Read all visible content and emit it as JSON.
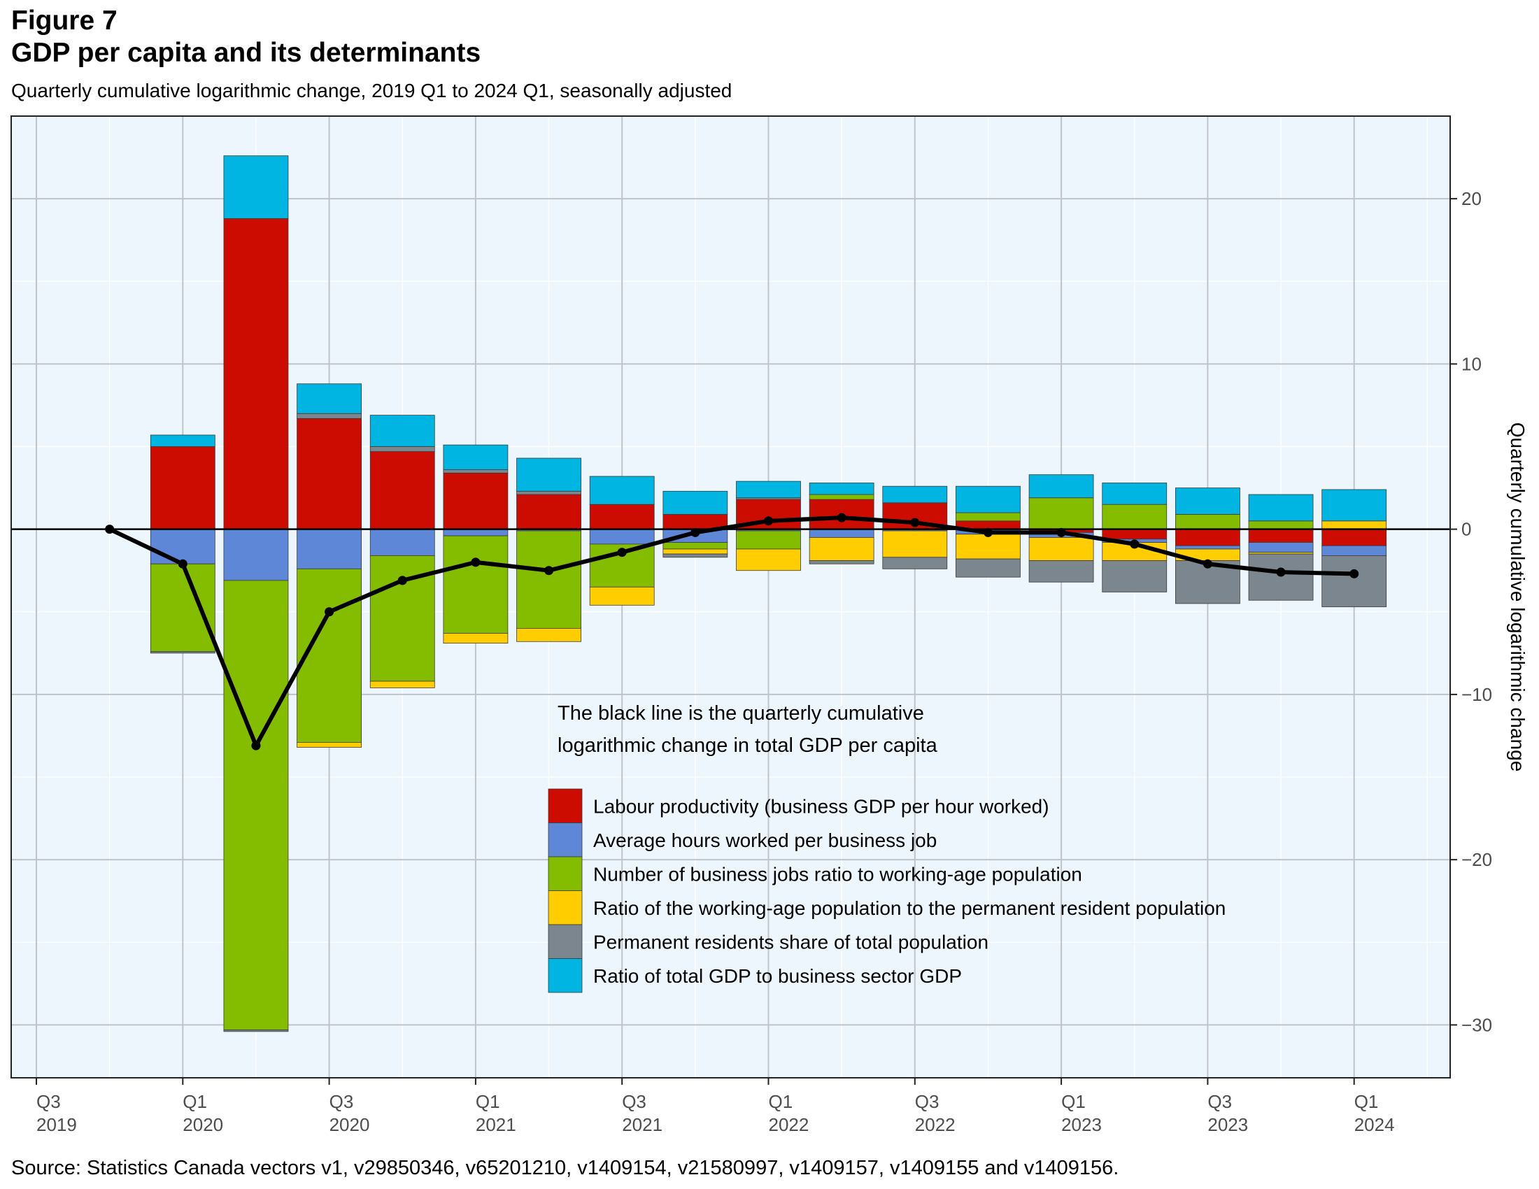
{
  "figure_label": "Figure 7",
  "title": "GDP per capita and its determinants",
  "subtitle": "Quarterly cumulative logarithmic change, 2019 Q1 to 2024 Q1, seasonally adjusted",
  "source": "Source: Statistics Canada vectors v1, v29850346, v65201210, v1409154, v21580997, v1409157, v1409155 and v1409156.",
  "annotation": [
    "The black line is the quarterly cumulative",
    "logarithmic change in total GDP per capita"
  ],
  "colors": {
    "panel_bg": "#eef6fd",
    "grid": "#bfc4c9",
    "labour_productivity": "#cc0c00",
    "hours_worked": "#5e87d8",
    "jobs_ratio": "#84bc00",
    "working_age_ratio": "#ffcd00",
    "permanent_residents": "#7b868e",
    "gdp_ratio": "#00b5e1",
    "line": "#000000"
  },
  "chart_data": {
    "type": "bar",
    "stacked": true,
    "x_tick_labels": [
      {
        "q": "Q3",
        "y": "2019"
      },
      {
        "q": "Q1",
        "y": "2020"
      },
      {
        "q": "Q3",
        "y": "2020"
      },
      {
        "q": "Q1",
        "y": "2021"
      },
      {
        "q": "Q3",
        "y": "2021"
      },
      {
        "q": "Q1",
        "y": "2022"
      },
      {
        "q": "Q3",
        "y": "2022"
      },
      {
        "q": "Q1",
        "y": "2023"
      },
      {
        "q": "Q3",
        "y": "2023"
      },
      {
        "q": "Q1",
        "y": "2024"
      }
    ],
    "categories": [
      "2019 Q4",
      "2020 Q1",
      "2020 Q2",
      "2020 Q3",
      "2020 Q4",
      "2021 Q1",
      "2021 Q2",
      "2021 Q3",
      "2021 Q4",
      "2022 Q1",
      "2022 Q2",
      "2022 Q3",
      "2022 Q4",
      "2023 Q1",
      "2023 Q2",
      "2023 Q3",
      "2023 Q4",
      "2024 Q1"
    ],
    "ylabel": "Quarterly cumulative logarithmic change",
    "ylim": [
      -33.2,
      25
    ],
    "yticks": [
      -30,
      -20,
      -10,
      0,
      10,
      20
    ],
    "grid": true,
    "legend_position": "center",
    "series": [
      {
        "name": "Labour productivity (business GDP per hour worked)",
        "color_key": "labour_productivity",
        "values": [
          0,
          5.0,
          18.8,
          6.7,
          4.7,
          3.4,
          2.1,
          1.5,
          0.9,
          1.8,
          1.8,
          1.6,
          0.5,
          -0.2,
          -0.6,
          -1.0,
          -0.8,
          -1.0
        ]
      },
      {
        "name": "Average hours worked per business job",
        "color_key": "hours_worked",
        "values": [
          0,
          -2.1,
          -3.1,
          -2.4,
          -1.6,
          -0.4,
          -0.1,
          -0.9,
          -0.8,
          -0.1,
          -0.5,
          -0.1,
          -0.3,
          -0.3,
          -0.2,
          -0.2,
          -0.6,
          -0.6
        ]
      },
      {
        "name": "Number of business jobs ratio to working-age population",
        "color_key": "jobs_ratio",
        "values": [
          0,
          -5.3,
          -27.2,
          -10.5,
          -7.6,
          -5.9,
          -5.9,
          -2.6,
          -0.4,
          -1.1,
          0.3,
          0,
          0.5,
          1.9,
          1.5,
          0.9,
          0.5,
          0
        ]
      },
      {
        "name": "Ratio of the working-age population to the permanent resident population",
        "color_key": "working_age_ratio",
        "values": [
          0,
          0,
          0,
          -0.3,
          -0.4,
          -0.6,
          -0.8,
          -1.1,
          -0.3,
          -1.3,
          -1.4,
          -1.6,
          -1.5,
          -1.4,
          -1.1,
          -0.7,
          -0.1,
          0.5
        ]
      },
      {
        "name": "Permanent residents share of total population",
        "color_key": "permanent_residents",
        "values": [
          0,
          -0.1,
          -0.1,
          0.3,
          0.3,
          0.2,
          0.2,
          0,
          -0.2,
          0.1,
          -0.2,
          -0.7,
          -1.1,
          -1.3,
          -1.9,
          -2.6,
          -2.8,
          -3.1
        ]
      },
      {
        "name": "Ratio of total GDP to business sector GDP",
        "color_key": "gdp_ratio",
        "values": [
          0,
          0.7,
          3.8,
          1.8,
          1.9,
          1.5,
          2.0,
          1.7,
          1.4,
          1.0,
          0.7,
          1.0,
          1.6,
          1.4,
          1.3,
          1.6,
          1.6,
          1.9
        ]
      }
    ],
    "line": {
      "name": "Total GDP per capita",
      "values": [
        0,
        -2.1,
        -13.1,
        -5.0,
        -3.1,
        -2.0,
        -2.5,
        -1.4,
        -0.2,
        0.5,
        0.7,
        0.4,
        -0.2,
        -0.2,
        -0.9,
        -2.1,
        -2.6,
        -2.7
      ]
    }
  }
}
